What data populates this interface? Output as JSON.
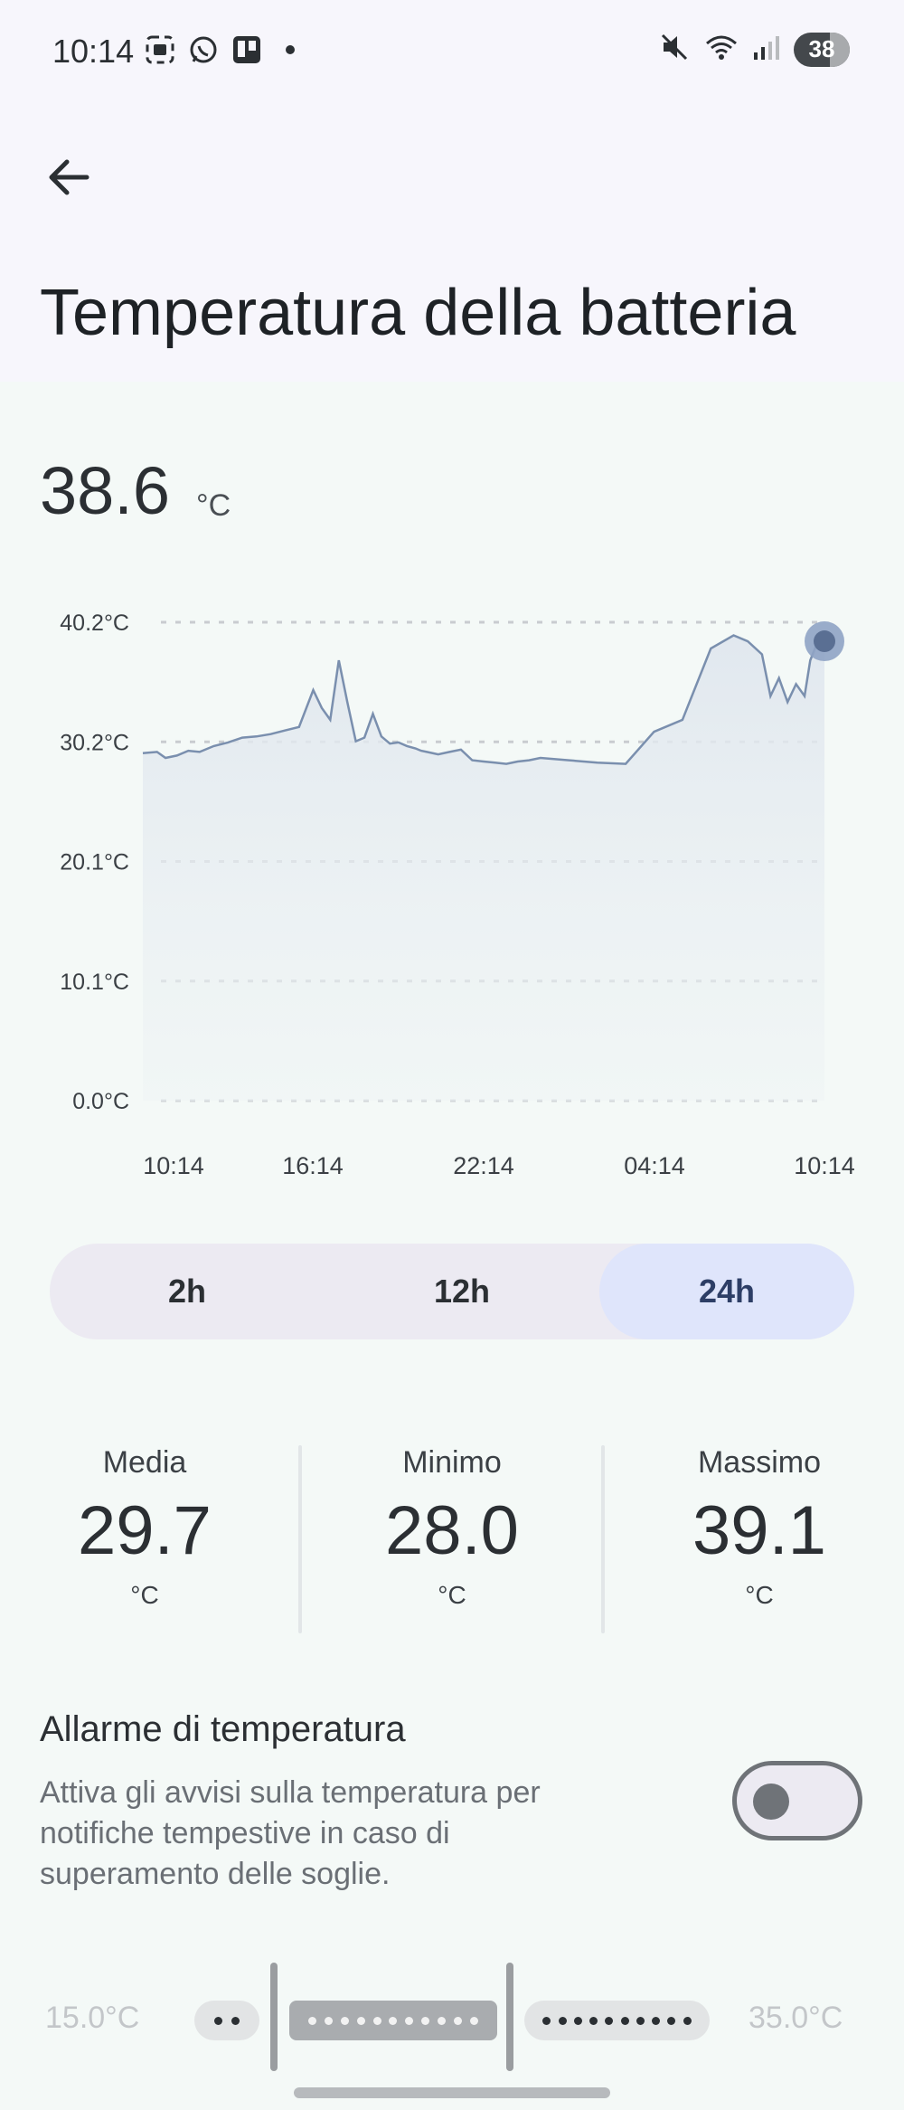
{
  "status_bar": {
    "time": "10:14",
    "battery_level": "38",
    "icons_left": [
      "screenshot-icon",
      "whatsapp-icon",
      "trello-icon",
      "dot-icon"
    ],
    "icons_right": [
      "mute-icon",
      "wifi-icon",
      "signal-icon"
    ]
  },
  "header": {
    "title": "Temperatura della batteria"
  },
  "current": {
    "value": "38.6",
    "unit": "°C"
  },
  "chart_data": {
    "type": "area",
    "y_tick_labels": [
      "40.2°C",
      "30.2°C",
      "20.1°C",
      "10.1°C",
      "0.0°C"
    ],
    "x_tick_labels": [
      "10:14",
      "16:14",
      "22:14",
      "04:14",
      "10:14"
    ],
    "ylim": [
      0,
      40.2
    ],
    "xlim": [
      0,
      24
    ],
    "grid": true,
    "line_color": "#7a8fae",
    "x": [
      0,
      0.5,
      0.8,
      1.2,
      1.6,
      2,
      2.5,
      3,
      3.5,
      4,
      4.5,
      5,
      5.5,
      6,
      6.3,
      6.6,
      6.9,
      7.2,
      7.5,
      7.8,
      8.1,
      8.4,
      8.7,
      9,
      9.3,
      9.6,
      9.8,
      10,
      10.4,
      10.8,
      11.2,
      11.6,
      12,
      12.4,
      12.8,
      13.2,
      13.6,
      14,
      15,
      16,
      17,
      18,
      19,
      20,
      20.8,
      21.3,
      21.8,
      22.1,
      22.4,
      22.7,
      23.0,
      23.3,
      23.5,
      23.7,
      24
    ],
    "values": [
      29.2,
      29.3,
      28.8,
      29.0,
      29.4,
      29.3,
      29.8,
      30.1,
      30.5,
      30.6,
      30.8,
      31.1,
      31.4,
      34.5,
      33.0,
      32.0,
      37.0,
      33.5,
      30.2,
      30.5,
      32.5,
      30.6,
      30.0,
      30.1,
      29.8,
      29.6,
      29.4,
      29.3,
      29.1,
      29.3,
      29.5,
      28.6,
      28.5,
      28.4,
      28.3,
      28.5,
      28.6,
      28.8,
      28.6,
      28.4,
      28.3,
      31.0,
      32.0,
      38.0,
      39.1,
      38.6,
      37.5,
      34.0,
      35.5,
      33.5,
      35.0,
      34.0,
      37.0,
      38.2,
      38.6
    ],
    "current_point": {
      "x": 24,
      "y": 38.6
    }
  },
  "range_tabs": {
    "options": [
      "2h",
      "12h",
      "24h"
    ],
    "selected": "24h"
  },
  "stats": {
    "media": {
      "label": "Media",
      "value": "29.7",
      "unit": "°C"
    },
    "minimo": {
      "label": "Minimo",
      "value": "28.0",
      "unit": "°C"
    },
    "massimo": {
      "label": "Massimo",
      "value": "39.1",
      "unit": "°C"
    }
  },
  "alarm": {
    "title": "Allarme di temperatura",
    "description": "Attiva gli avvisi sulla temperatura per notifiche tempestive in caso di superamento delle soglie.",
    "enabled": false
  },
  "thresholds": {
    "min_label": "15.0°C",
    "max_label": "35.0°C"
  }
}
